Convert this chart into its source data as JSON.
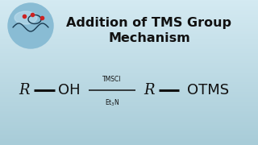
{
  "title_line1": "Addition of TMS Group",
  "title_line2": "Mechanism",
  "title_fontsize": 11.5,
  "title_color": "#111111",
  "title_weight": "bold",
  "bg_color": "#c2dce6",
  "text_color": "#111111",
  "chem_fontsize": 13,
  "reagent_top": "TMSCl",
  "reagent_bottom": "Et$_3$N",
  "reagent_fontsize": 5.5,
  "logo_circle_color": "#7ab8d4",
  "logo_highlight": "#c8e4f0"
}
